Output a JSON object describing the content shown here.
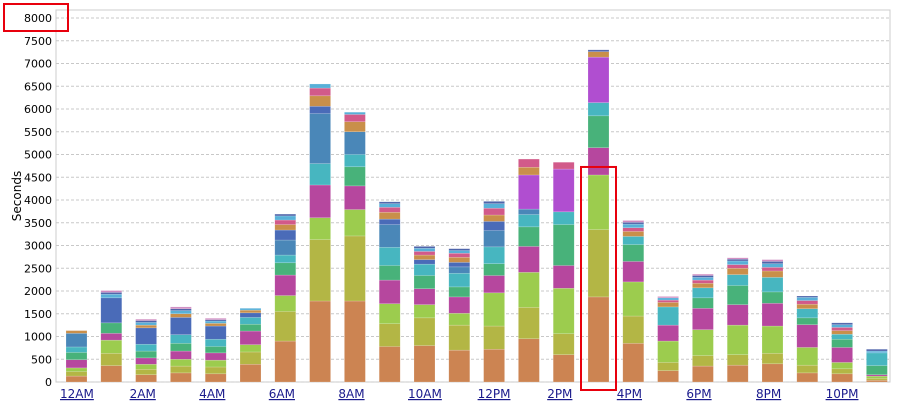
{
  "chart_data": {
    "type": "bar",
    "stacked": true,
    "ylabel": "Seconds",
    "ylim": [
      0,
      8000
    ],
    "yticks": [
      0,
      500,
      1000,
      1500,
      2000,
      2500,
      3000,
      3500,
      4000,
      4500,
      5000,
      5500,
      6000,
      6500,
      7000,
      7500,
      8000
    ],
    "x_tick_labels": [
      "12AM",
      "2AM",
      "4AM",
      "6AM",
      "8AM",
      "10AM",
      "12PM",
      "2PM",
      "4PM",
      "6PM",
      "8PM",
      "10PM"
    ],
    "grid": true,
    "categories": [
      "12AM",
      "1AM",
      "2AM",
      "3AM",
      "4AM",
      "5AM",
      "6AM",
      "7AM",
      "8AM",
      "9AM",
      "10AM",
      "11AM",
      "12PM",
      "1PM",
      "2PM",
      "3PM",
      "4PM",
      "5PM",
      "6PM",
      "7PM",
      "8PM",
      "9PM",
      "10PM",
      "11PM"
    ],
    "segment_colors": [
      "#cc8452",
      "#b3b645",
      "#9ccc4e",
      "#b6479e",
      "#48b27a",
      "#47b6c0",
      "#4a87b8",
      "#4a6bb8",
      "#b04ed0",
      "#c98f4a",
      "#d25a8a",
      "#58b0d8",
      "#999999",
      "#4e64aa",
      "#cfcf88",
      "#d08ac0"
    ],
    "segments": [
      [
        130,
        100,
        80,
        180,
        160,
        120,
        300,
        0,
        0,
        60,
        0,
        0,
        0,
        0,
        0,
        0
      ],
      [
        360,
        270,
        290,
        150,
        230,
        0,
        0,
        550,
        0,
        0,
        0,
        80,
        0,
        40,
        0,
        40
      ],
      [
        160,
        120,
        110,
        140,
        150,
        150,
        0,
        360,
        0,
        60,
        0,
        60,
        0,
        40,
        0,
        30
      ],
      [
        200,
        150,
        150,
        180,
        170,
        190,
        0,
        380,
        0,
        80,
        0,
        70,
        0,
        40,
        0,
        40
      ],
      [
        180,
        150,
        150,
        160,
        140,
        160,
        0,
        290,
        0,
        60,
        0,
        50,
        0,
        30,
        0,
        30
      ],
      [
        390,
        270,
        160,
        300,
        150,
        150,
        0,
        100,
        0,
        60,
        0,
        40,
        0,
        0,
        0,
        0
      ],
      [
        900,
        650,
        350,
        450,
        270,
        170,
        330,
        220,
        0,
        120,
        100,
        90,
        0,
        40,
        0,
        0
      ],
      [
        1780,
        1350,
        480,
        720,
        0,
        470,
        1100,
        160,
        0,
        230,
        170,
        90,
        0,
        0,
        0,
        0
      ],
      [
        1780,
        1430,
        580,
        520,
        420,
        270,
        500,
        0,
        0,
        220,
        160,
        50,
        0,
        0,
        0,
        0
      ],
      [
        780,
        500,
        440,
        520,
        320,
        400,
        500,
        120,
        0,
        150,
        110,
        80,
        0,
        40,
        0,
        0
      ],
      [
        800,
        610,
        290,
        350,
        290,
        250,
        0,
        100,
        0,
        100,
        80,
        70,
        0,
        40,
        0,
        0
      ],
      [
        700,
        550,
        260,
        360,
        220,
        300,
        140,
        100,
        0,
        110,
        90,
        60,
        0,
        40,
        0,
        0
      ],
      [
        720,
        510,
        730,
        380,
        260,
        370,
        360,
        200,
        0,
        140,
        150,
        100,
        0,
        50,
        0,
        0
      ],
      [
        950,
        690,
        770,
        570,
        430,
        270,
        120,
        0,
        750,
        170,
        180,
        0,
        0,
        0,
        0,
        0
      ],
      [
        600,
        460,
        1000,
        500,
        900,
        280,
        0,
        0,
        940,
        0,
        150,
        0,
        0,
        0,
        0,
        0
      ],
      [
        1870,
        1480,
        1200,
        600,
        700,
        290,
        0,
        0,
        1000,
        120,
        0,
        0,
        0,
        40,
        0,
        0
      ],
      [
        850,
        600,
        750,
        450,
        370,
        180,
        0,
        0,
        0,
        110,
        80,
        80,
        0,
        40,
        0,
        40
      ],
      [
        250,
        180,
        470,
        350,
        0,
        400,
        0,
        0,
        0,
        100,
        50,
        50,
        0,
        0,
        0,
        30
      ],
      [
        350,
        230,
        570,
        470,
        230,
        220,
        0,
        0,
        0,
        100,
        70,
        60,
        0,
        40,
        0,
        30
      ],
      [
        370,
        230,
        650,
        450,
        420,
        240,
        0,
        0,
        0,
        140,
        80,
        80,
        0,
        40,
        0,
        30
      ],
      [
        400,
        230,
        600,
        500,
        250,
        320,
        0,
        0,
        0,
        140,
        80,
        80,
        0,
        50,
        0,
        40
      ],
      [
        200,
        170,
        390,
        500,
        150,
        200,
        0,
        0,
        0,
        100,
        80,
        70,
        0,
        30,
        0,
        0
      ],
      [
        180,
        110,
        140,
        330,
        180,
        110,
        0,
        0,
        0,
        80,
        70,
        60,
        0,
        40,
        0,
        0
      ],
      [
        40,
        40,
        50,
        30,
        200,
        280,
        0,
        0,
        0,
        0,
        0,
        40,
        0,
        40,
        0,
        0
      ]
    ],
    "annotation_color": "#e8000d",
    "highlighted_category_index": 15
  }
}
